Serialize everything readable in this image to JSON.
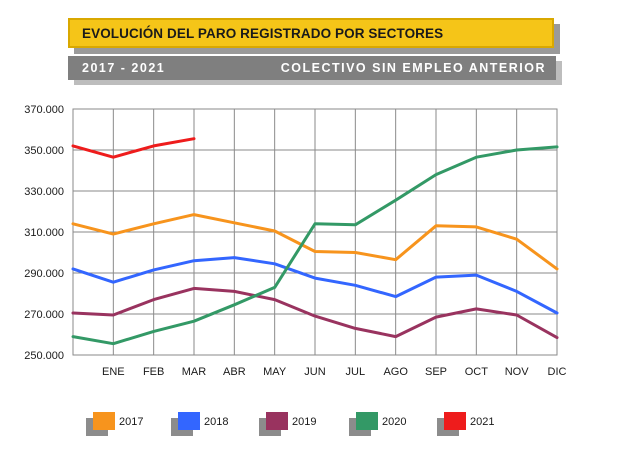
{
  "header": {
    "title": "EVOLUCIÓN DEL PARO REGISTRADO POR SECTORES",
    "years": "2017 - 2021",
    "group": "COLECTIVO SIN EMPLEO ANTERIOR"
  },
  "chart_data": {
    "type": "line",
    "title": "EVOLUCIÓN DEL PARO REGISTRADO POR SECTORES",
    "xlabel": "",
    "ylabel": "",
    "categories": [
      "",
      "ENE",
      "FEB",
      "MAR",
      "ABR",
      "MAY",
      "JUN",
      "JUL",
      "AGO",
      "SEP",
      "OCT",
      "NOV",
      "DIC"
    ],
    "ylim": [
      250000,
      370000
    ],
    "yticks": [
      "370.000",
      "350.000",
      "330.000",
      "310.000",
      "290.000",
      "270.000",
      "250.000"
    ],
    "ytick_values": [
      370000,
      350000,
      330000,
      310000,
      290000,
      270000,
      250000
    ],
    "grid": true,
    "legend_position": "bottom",
    "series": [
      {
        "name": "2017",
        "color": "#f7941d",
        "values": [
          314000,
          309000,
          314000,
          318500,
          314500,
          310500,
          300500,
          300000,
          296500,
          313000,
          312500,
          306500,
          292000
        ]
      },
      {
        "name": "2018",
        "color": "#3366ff",
        "values": [
          292000,
          285500,
          291500,
          296000,
          297500,
          294500,
          287500,
          284000,
          278500,
          288000,
          289000,
          281000,
          270500
        ]
      },
      {
        "name": "2019",
        "color": "#99335f",
        "values": [
          270500,
          269500,
          277000,
          282500,
          281000,
          277000,
          269000,
          263000,
          259000,
          268500,
          272500,
          269500,
          258500
        ]
      },
      {
        "name": "2020",
        "color": "#339966",
        "values": [
          259000,
          255500,
          261500,
          266500,
          274500,
          283000,
          314000,
          313500,
          325500,
          338000,
          346500,
          350000,
          351500
        ]
      },
      {
        "name": "2021",
        "color": "#ee1c1c",
        "values": [
          352000,
          346500,
          352000,
          355500,
          null,
          null,
          null,
          null,
          null,
          null,
          null,
          null,
          null
        ]
      }
    ]
  }
}
